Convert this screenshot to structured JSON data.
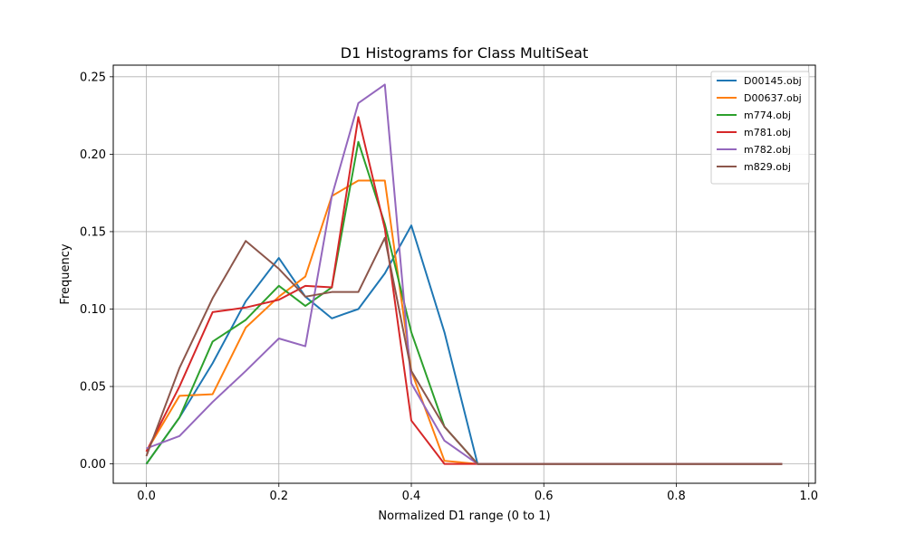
{
  "chart_data": {
    "type": "line",
    "title": "D1 Histograms for Class MultiSeat",
    "xlabel": "Normalized D1 range (0 to 1)",
    "ylabel": "Frequency",
    "xlim": [
      -0.05,
      1.01
    ],
    "ylim": [
      -0.0125,
      0.2575
    ],
    "xticks": [
      0.0,
      0.2,
      0.4,
      0.6,
      0.8,
      1.0
    ],
    "xtick_labels": [
      "0.0",
      "0.2",
      "0.4",
      "0.6",
      "0.8",
      "1.0"
    ],
    "yticks": [
      0.0,
      0.05,
      0.1,
      0.15,
      0.2,
      0.25
    ],
    "ytick_labels": [
      "0.00",
      "0.05",
      "0.10",
      "0.15",
      "0.20",
      "0.25"
    ],
    "grid": true,
    "legend_position": "top-right",
    "x": [
      0.0,
      0.05,
      0.1,
      0.15,
      0.2,
      0.24,
      0.28,
      0.32,
      0.36,
      0.4,
      0.45,
      0.5,
      0.55,
      0.6,
      0.65,
      0.7,
      0.75,
      0.8,
      0.85,
      0.9,
      0.96
    ],
    "series": [
      {
        "name": "D00145.obj",
        "color": "#1f77b4",
        "values": [
          0.0,
          0.03,
          0.065,
          0.105,
          0.133,
          0.108,
          0.094,
          0.1,
          0.123,
          0.154,
          0.085,
          0.0,
          0.0,
          0.0,
          0.0,
          0.0,
          0.0,
          0.0,
          0.0,
          0.0,
          0.0
        ]
      },
      {
        "name": "D00637.obj",
        "color": "#ff7f0e",
        "values": [
          0.008,
          0.044,
          0.045,
          0.088,
          0.108,
          0.121,
          0.173,
          0.183,
          0.183,
          0.06,
          0.002,
          0.0,
          0.0,
          0.0,
          0.0,
          0.0,
          0.0,
          0.0,
          0.0,
          0.0,
          0.0
        ]
      },
      {
        "name": "m774.obj",
        "color": "#2ca02c",
        "values": [
          0.0,
          0.03,
          0.079,
          0.093,
          0.115,
          0.102,
          0.114,
          0.208,
          0.155,
          0.085,
          0.024,
          0.0,
          0.0,
          0.0,
          0.0,
          0.0,
          0.0,
          0.0,
          0.0,
          0.0,
          0.0
        ]
      },
      {
        "name": "m781.obj",
        "color": "#d62728",
        "values": [
          0.008,
          0.05,
          0.098,
          0.101,
          0.106,
          0.115,
          0.114,
          0.224,
          0.152,
          0.028,
          0.0,
          0.0,
          0.0,
          0.0,
          0.0,
          0.0,
          0.0,
          0.0,
          0.0,
          0.0,
          0.0
        ]
      },
      {
        "name": "m782.obj",
        "color": "#9467bd",
        "values": [
          0.01,
          0.018,
          0.04,
          0.06,
          0.081,
          0.076,
          0.173,
          0.233,
          0.245,
          0.052,
          0.015,
          0.0,
          0.0,
          0.0,
          0.0,
          0.0,
          0.0,
          0.0,
          0.0,
          0.0,
          0.0
        ]
      },
      {
        "name": "m829.obj",
        "color": "#8c564b",
        "values": [
          0.005,
          0.062,
          0.107,
          0.144,
          0.126,
          0.108,
          0.111,
          0.111,
          0.146,
          0.06,
          0.024,
          0.0,
          0.0,
          0.0,
          0.0,
          0.0,
          0.0,
          0.0,
          0.0,
          0.0,
          0.0
        ]
      }
    ]
  }
}
